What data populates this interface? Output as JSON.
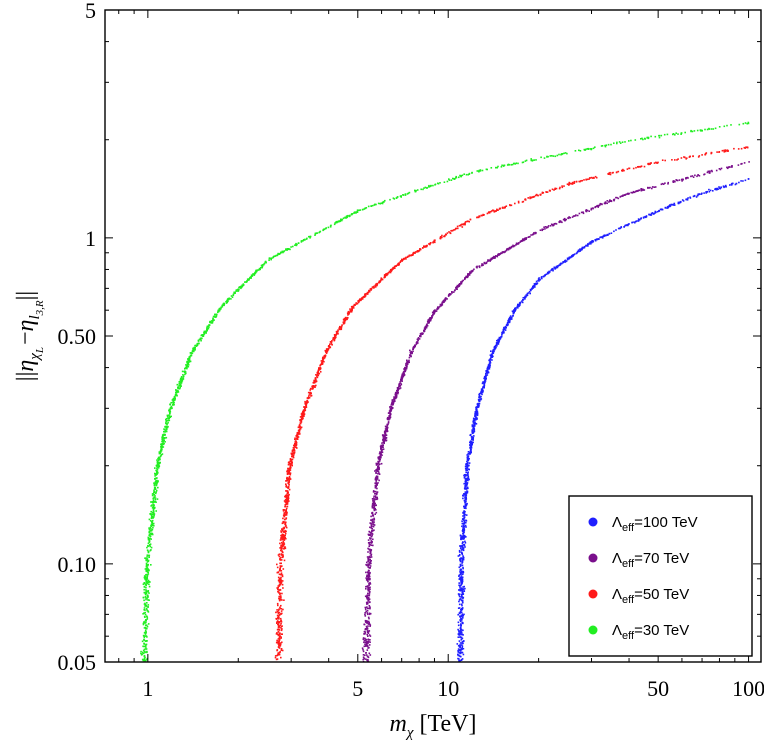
{
  "chart_data": {
    "type": "scatter",
    "title": "",
    "xlabel_main": "m",
    "xlabel_sub": "χ",
    "xlabel_unit": "[TeV]",
    "ylabel": "||η_{χL} − η_{l3,R}||",
    "ylabel_parts": {
      "outer_open": "||",
      "eta1": "η",
      "sub1": "χ",
      "subsub1": "L",
      "minus": "−",
      "eta2": "η",
      "sub2": "l",
      "subsub2": "3,R",
      "outer_close": "||"
    },
    "xscale": "log",
    "yscale": "log",
    "xlim": [
      0.72,
      110
    ],
    "ylim": [
      0.05,
      5
    ],
    "x_ticks": [
      {
        "value": 1,
        "label": "1"
      },
      {
        "value": 5,
        "label": "5"
      },
      {
        "value": 10,
        "label": "10"
      },
      {
        "value": 50,
        "label": "50"
      },
      {
        "value": 100,
        "label": "100"
      }
    ],
    "y_ticks": [
      {
        "value": 0.05,
        "label": "0.05"
      },
      {
        "value": 0.1,
        "label": "0.10"
      },
      {
        "value": 0.5,
        "label": "0.50"
      },
      {
        "value": 1,
        "label": "1"
      },
      {
        "value": 5,
        "label": "5"
      }
    ],
    "legend_placement": "bottom-right",
    "series": [
      {
        "name": "Λeff=100 TeV",
        "name_parts": {
          "symbol": "Λ",
          "sub": "eff",
          "rest": "=100 TeV"
        },
        "color": "#1f1fff",
        "x_threshold": 10.9,
        "y_at_100": 1.52,
        "points": [
          [
            10.9,
            0.05
          ],
          [
            11.0,
            0.1
          ],
          [
            11.5,
            0.2
          ],
          [
            12.4,
            0.3
          ],
          [
            14.0,
            0.45
          ],
          [
            16.5,
            0.6
          ],
          [
            20,
            0.75
          ],
          [
            30,
            0.98
          ],
          [
            50,
            1.22
          ],
          [
            70,
            1.38
          ],
          [
            100,
            1.52
          ]
        ]
      },
      {
        "name": "Λeff=70 TeV",
        "name_parts": {
          "symbol": "Λ",
          "sub": "eff",
          "rest": "=70 TeV"
        },
        "color": "#7a0f8c",
        "x_threshold": 5.3,
        "y_at_100": 1.72,
        "points": [
          [
            5.3,
            0.05
          ],
          [
            5.4,
            0.1
          ],
          [
            5.8,
            0.2
          ],
          [
            6.4,
            0.3
          ],
          [
            7.5,
            0.45
          ],
          [
            9,
            0.6
          ],
          [
            12,
            0.8
          ],
          [
            20,
            1.06
          ],
          [
            40,
            1.38
          ],
          [
            70,
            1.58
          ],
          [
            100,
            1.72
          ]
        ]
      },
      {
        "name": "Λeff=50 TeV",
        "name_parts": {
          "symbol": "Λ",
          "sub": "eff",
          "rest": "=50 TeV"
        },
        "color": "#ff1a1a",
        "x_threshold": 2.7,
        "y_at_100": 1.91,
        "points": [
          [
            2.7,
            0.05
          ],
          [
            2.75,
            0.1
          ],
          [
            2.95,
            0.2
          ],
          [
            3.3,
            0.3
          ],
          [
            3.9,
            0.45
          ],
          [
            4.8,
            0.62
          ],
          [
            7,
            0.86
          ],
          [
            12,
            1.15
          ],
          [
            25,
            1.47
          ],
          [
            50,
            1.72
          ],
          [
            100,
            1.91
          ]
        ]
      },
      {
        "name": "Λeff=30 TeV",
        "name_parts": {
          "symbol": "Λ",
          "sub": "eff",
          "rest": "=30 TeV"
        },
        "color": "#22ee22",
        "x_threshold": 0.97,
        "y_at_100": 2.26,
        "points": [
          [
            0.97,
            0.05
          ],
          [
            0.99,
            0.1
          ],
          [
            1.07,
            0.2
          ],
          [
            1.18,
            0.3
          ],
          [
            1.4,
            0.45
          ],
          [
            1.75,
            0.62
          ],
          [
            2.5,
            0.86
          ],
          [
            5,
            1.22
          ],
          [
            12,
            1.6
          ],
          [
            40,
            2.0
          ],
          [
            100,
            2.26
          ]
        ]
      }
    ]
  }
}
